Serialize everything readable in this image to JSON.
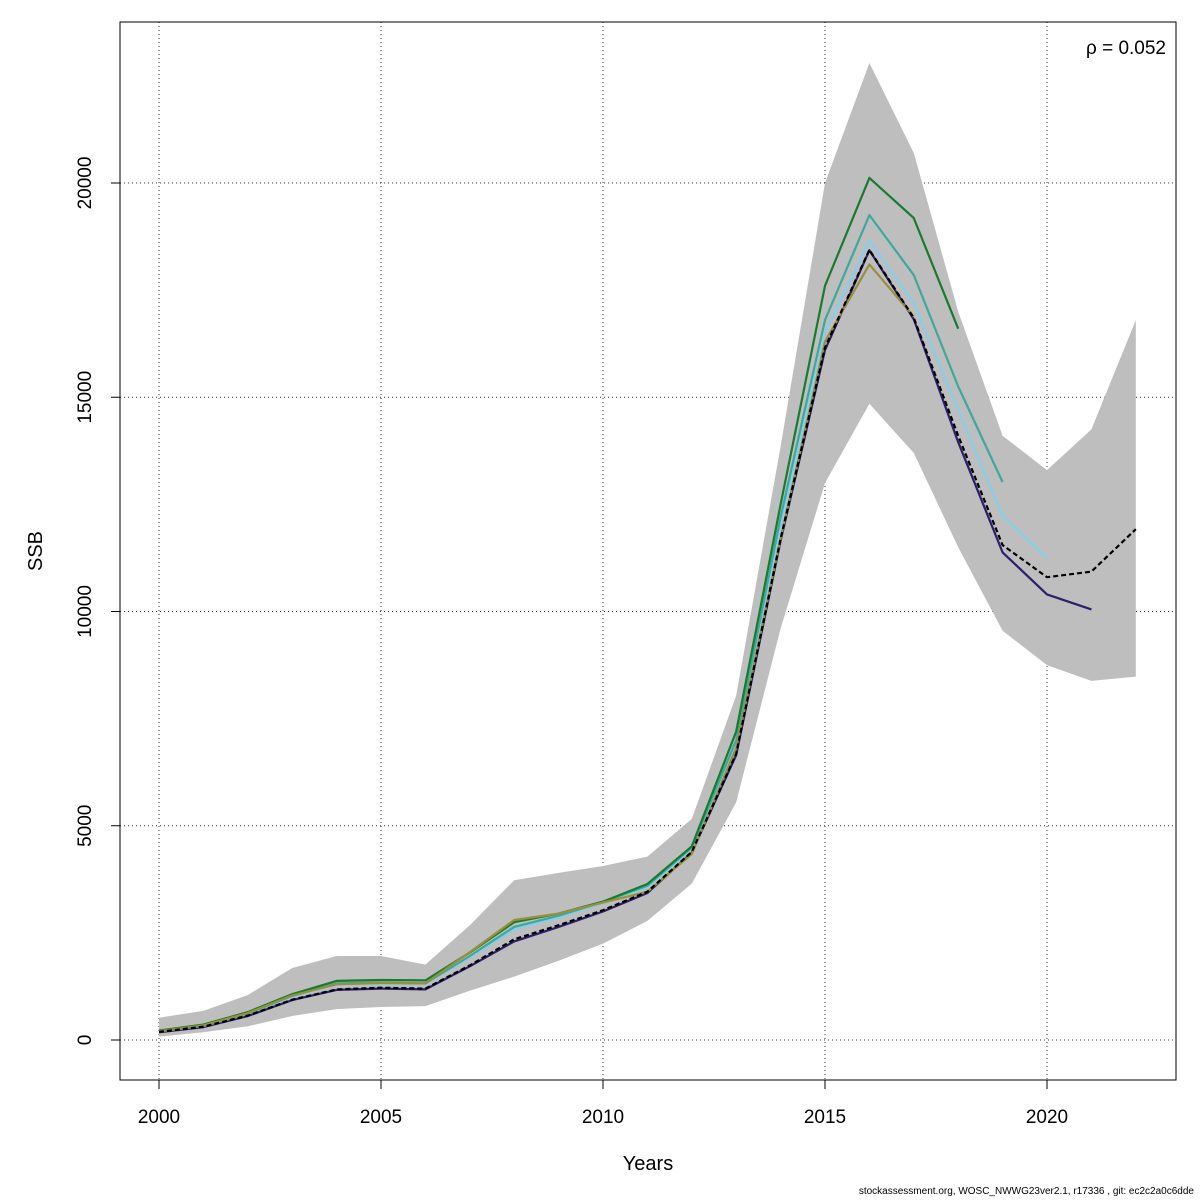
{
  "chart_data": {
    "type": "line",
    "xlabel": "Years",
    "ylabel": "SSB",
    "xlim": [
      2000,
      2022
    ],
    "ylim": [
      0,
      23000
    ],
    "x_ticks": [
      2000,
      2005,
      2010,
      2015,
      2020
    ],
    "y_ticks": [
      0,
      5000,
      10000,
      15000,
      20000
    ],
    "x_tick_labels": [
      "2000",
      "2005",
      "2010",
      "2015",
      "2020"
    ],
    "y_tick_labels": [
      "0",
      "5000",
      "10000",
      "15000",
      "20000"
    ],
    "grid": true,
    "annotation": "ρ = 0.052",
    "confidence_band": {
      "x": [
        2000,
        2001,
        2002,
        2003,
        2004,
        2005,
        2006,
        2007,
        2008,
        2009,
        2010,
        2011,
        2012,
        2013,
        2014,
        2015,
        2016,
        2017,
        2018,
        2019,
        2020,
        2021,
        2022
      ],
      "lower": [
        80,
        180,
        320,
        560,
        720,
        770,
        790,
        1150,
        1480,
        1850,
        2250,
        2780,
        3650,
        5550,
        9600,
        13000,
        14850,
        13700,
        11500,
        9550,
        8750,
        8380,
        8480
      ],
      "upper": [
        520,
        680,
        1050,
        1680,
        1960,
        1960,
        1760,
        2680,
        3730,
        3900,
        4060,
        4280,
        5160,
        8040,
        13850,
        20000,
        22800,
        20700,
        17000,
        14100,
        13300,
        14250,
        16800
      ]
    },
    "series": [
      {
        "color": "#000000",
        "dashed": true,
        "x": [
          2000,
          2001,
          2002,
          2003,
          2004,
          2005,
          2006,
          2007,
          2008,
          2009,
          2010,
          2011,
          2012,
          2013,
          2014,
          2015,
          2016,
          2017,
          2018,
          2019,
          2020,
          2021,
          2022
        ],
        "values": [
          190,
          310,
          570,
          940,
          1180,
          1220,
          1200,
          1740,
          2350,
          2680,
          3030,
          3460,
          4390,
          6680,
          11700,
          16160,
          18440,
          16850,
          14100,
          11550,
          10800,
          10930,
          11920
        ]
      },
      {
        "color": "#2D1E6E",
        "dashed": false,
        "x": [
          2000,
          2001,
          2002,
          2003,
          2004,
          2005,
          2006,
          2007,
          2008,
          2009,
          2010,
          2011,
          2012,
          2013,
          2014,
          2015,
          2016,
          2017,
          2018,
          2019,
          2020,
          2021
        ],
        "values": [
          180,
          300,
          560,
          930,
          1170,
          1200,
          1180,
          1720,
          2300,
          2640,
          3000,
          3430,
          4370,
          6650,
          11650,
          16100,
          18430,
          16820,
          13950,
          11380,
          10400,
          10050
        ]
      },
      {
        "color": "#87CEEB",
        "dashed": false,
        "x": [
          2000,
          2001,
          2002,
          2003,
          2004,
          2005,
          2006,
          2007,
          2008,
          2009,
          2010,
          2011,
          2012,
          2013,
          2014,
          2015,
          2016,
          2017,
          2018,
          2019,
          2020
        ],
        "values": [
          200,
          330,
          610,
          1010,
          1290,
          1310,
          1300,
          1930,
          2580,
          2860,
          3190,
          3560,
          4460,
          6900,
          12000,
          16500,
          18650,
          17200,
          14700,
          12230,
          11250
        ]
      },
      {
        "color": "#3BA99C",
        "dashed": false,
        "x": [
          2000,
          2001,
          2002,
          2003,
          2004,
          2005,
          2006,
          2007,
          2008,
          2009,
          2010,
          2011,
          2012,
          2013,
          2014,
          2015,
          2016,
          2017,
          2018,
          2019
        ],
        "values": [
          210,
          340,
          620,
          1030,
          1320,
          1340,
          1320,
          1960,
          2640,
          2900,
          3220,
          3600,
          4490,
          7000,
          12200,
          16800,
          19250,
          17850,
          15250,
          13020
        ]
      },
      {
        "color": "#1A7A2E",
        "dashed": false,
        "x": [
          2000,
          2001,
          2002,
          2003,
          2004,
          2005,
          2006,
          2007,
          2008,
          2009,
          2010,
          2011,
          2012,
          2013,
          2014,
          2015,
          2016,
          2017,
          2018
        ],
        "values": [
          220,
          360,
          650,
          1070,
          1380,
          1400,
          1390,
          2040,
          2750,
          2950,
          3230,
          3640,
          4520,
          7200,
          12500,
          17600,
          20120,
          19180,
          16600
        ]
      },
      {
        "color": "#9A8F3A",
        "dashed": false,
        "x": [
          2000,
          2001,
          2002,
          2003,
          2004,
          2005,
          2006,
          2007,
          2008,
          2009,
          2010,
          2011,
          2012,
          2013,
          2014,
          2015,
          2016,
          2017
        ],
        "values": [
          200,
          340,
          630,
          1040,
          1300,
          1330,
          1320,
          2050,
          2800,
          2950,
          3210,
          3460,
          4340,
          6820,
          11700,
          16300,
          18100,
          16880
        ]
      }
    ]
  },
  "footer_text": "stockassessment.org, WOSC_NWWG23ver2.1, r17336 , git: ec2c2a0c6dde"
}
